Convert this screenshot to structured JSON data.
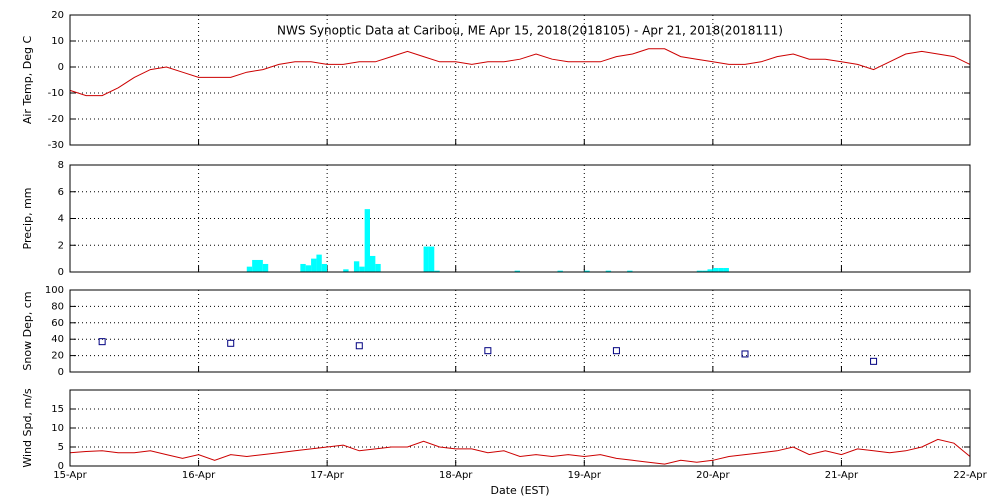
{
  "chart_data": [
    {
      "type": "line",
      "title": "NWS Synoptic Data at Caribou, ME   Apr 15, 2018(2018105) - Apr 21, 2018(2018111)",
      "y_label": "Air Temp, Deg C",
      "xlim": [
        0,
        168
      ],
      "ylim": [
        -30,
        20
      ],
      "yticks": [
        -30,
        -20,
        -10,
        0,
        10,
        20
      ],
      "grid": true,
      "series": [
        {
          "color": "#cc0000",
          "x": [
            0,
            3,
            6,
            9,
            12,
            15,
            18,
            21,
            24,
            27,
            30,
            33,
            36,
            39,
            42,
            45,
            48,
            51,
            54,
            57,
            60,
            63,
            66,
            69,
            72,
            75,
            78,
            81,
            84,
            87,
            90,
            93,
            96,
            99,
            102,
            105,
            108,
            111,
            114,
            117,
            120,
            123,
            126,
            129,
            132,
            135,
            138,
            141,
            144,
            147,
            150,
            153,
            156,
            159,
            162,
            165,
            168
          ],
          "values": [
            -9,
            -11,
            -11,
            -8,
            -4,
            -1,
            0,
            -2,
            -4,
            -4,
            -4,
            -2,
            -1,
            1,
            2,
            2,
            1,
            1,
            2,
            2,
            4,
            6,
            4,
            2,
            2,
            1,
            2,
            2,
            3,
            5,
            3,
            2,
            2,
            2,
            4,
            5,
            7,
            7,
            4,
            3,
            2,
            1,
            1,
            2,
            4,
            5,
            3,
            3,
            2,
            1,
            -1,
            2,
            5,
            6,
            5,
            4,
            1
          ]
        }
      ]
    },
    {
      "type": "bar",
      "y_label": "Precip, mm",
      "xlim": [
        0,
        168
      ],
      "ylim": [
        0,
        8
      ],
      "yticks": [
        0,
        2,
        4,
        6,
        8
      ],
      "grid": true,
      "series": [
        {
          "color": "#00ffff",
          "x": [
            33,
            34,
            35,
            36,
            43,
            44,
            45,
            46,
            47,
            51,
            53,
            54,
            55,
            56,
            57,
            66,
            67,
            68,
            83,
            91,
            96,
            100,
            104,
            117,
            118,
            119,
            120,
            121,
            122
          ],
          "values": [
            0.4,
            0.9,
            0.9,
            0.6,
            0.6,
            0.5,
            1.0,
            1.3,
            0.6,
            0.2,
            0.8,
            0.4,
            4.7,
            1.2,
            0.6,
            1.9,
            1.9,
            0.1,
            0.1,
            0.1,
            0.1,
            0.1,
            0.1,
            0.1,
            0.1,
            0.2,
            0.3,
            0.3,
            0.3
          ]
        }
      ]
    },
    {
      "type": "scatter",
      "y_label": "Snow Dep, cm",
      "xlim": [
        0,
        168
      ],
      "ylim": [
        0,
        100
      ],
      "yticks": [
        0,
        20,
        40,
        60,
        80,
        100
      ],
      "grid": true,
      "series": [
        {
          "color": "#000080",
          "x": [
            6,
            30,
            54,
            78,
            102,
            126,
            150
          ],
          "values": [
            37,
            35,
            32,
            26,
            26,
            22,
            13
          ]
        }
      ]
    },
    {
      "type": "line",
      "y_label": "Wind Spd, m/s",
      "x_label": "Date (EST)",
      "xlim": [
        0,
        168
      ],
      "ylim": [
        0,
        20
      ],
      "yticks": [
        0,
        5,
        10,
        15
      ],
      "grid": true,
      "xticks": [
        {
          "value": 0,
          "label": "15-Apr"
        },
        {
          "value": 24,
          "label": "16-Apr"
        },
        {
          "value": 48,
          "label": "17-Apr"
        },
        {
          "value": 72,
          "label": "18-Apr"
        },
        {
          "value": 96,
          "label": "19-Apr"
        },
        {
          "value": 120,
          "label": "20-Apr"
        },
        {
          "value": 144,
          "label": "21-Apr"
        },
        {
          "value": 168,
          "label": "22-Apr"
        }
      ],
      "series": [
        {
          "color": "#cc0000",
          "x": [
            0,
            3,
            6,
            9,
            12,
            15,
            18,
            21,
            24,
            27,
            30,
            33,
            36,
            39,
            42,
            45,
            48,
            51,
            54,
            57,
            60,
            63,
            66,
            69,
            72,
            75,
            78,
            81,
            84,
            87,
            90,
            93,
            96,
            99,
            102,
            105,
            108,
            111,
            114,
            117,
            120,
            123,
            126,
            129,
            132,
            135,
            138,
            141,
            144,
            147,
            150,
            153,
            156,
            159,
            162,
            165,
            168
          ],
          "values": [
            3.5,
            3.8,
            4,
            3.5,
            3.5,
            4,
            3,
            2,
            3,
            1.5,
            3,
            2.5,
            3,
            3.5,
            4,
            4.5,
            5,
            5.5,
            4,
            4.5,
            5,
            5,
            6.5,
            5,
            4.5,
            4.5,
            3.5,
            4,
            2.5,
            3,
            2.5,
            3,
            2.5,
            3,
            2,
            1.5,
            1,
            0.5,
            1.5,
            1,
            1.5,
            2.5,
            3,
            3.5,
            4,
            5,
            3,
            4,
            3,
            4.5,
            4,
            3.5,
            4,
            5,
            7,
            6,
            2.5
          ]
        }
      ]
    }
  ]
}
